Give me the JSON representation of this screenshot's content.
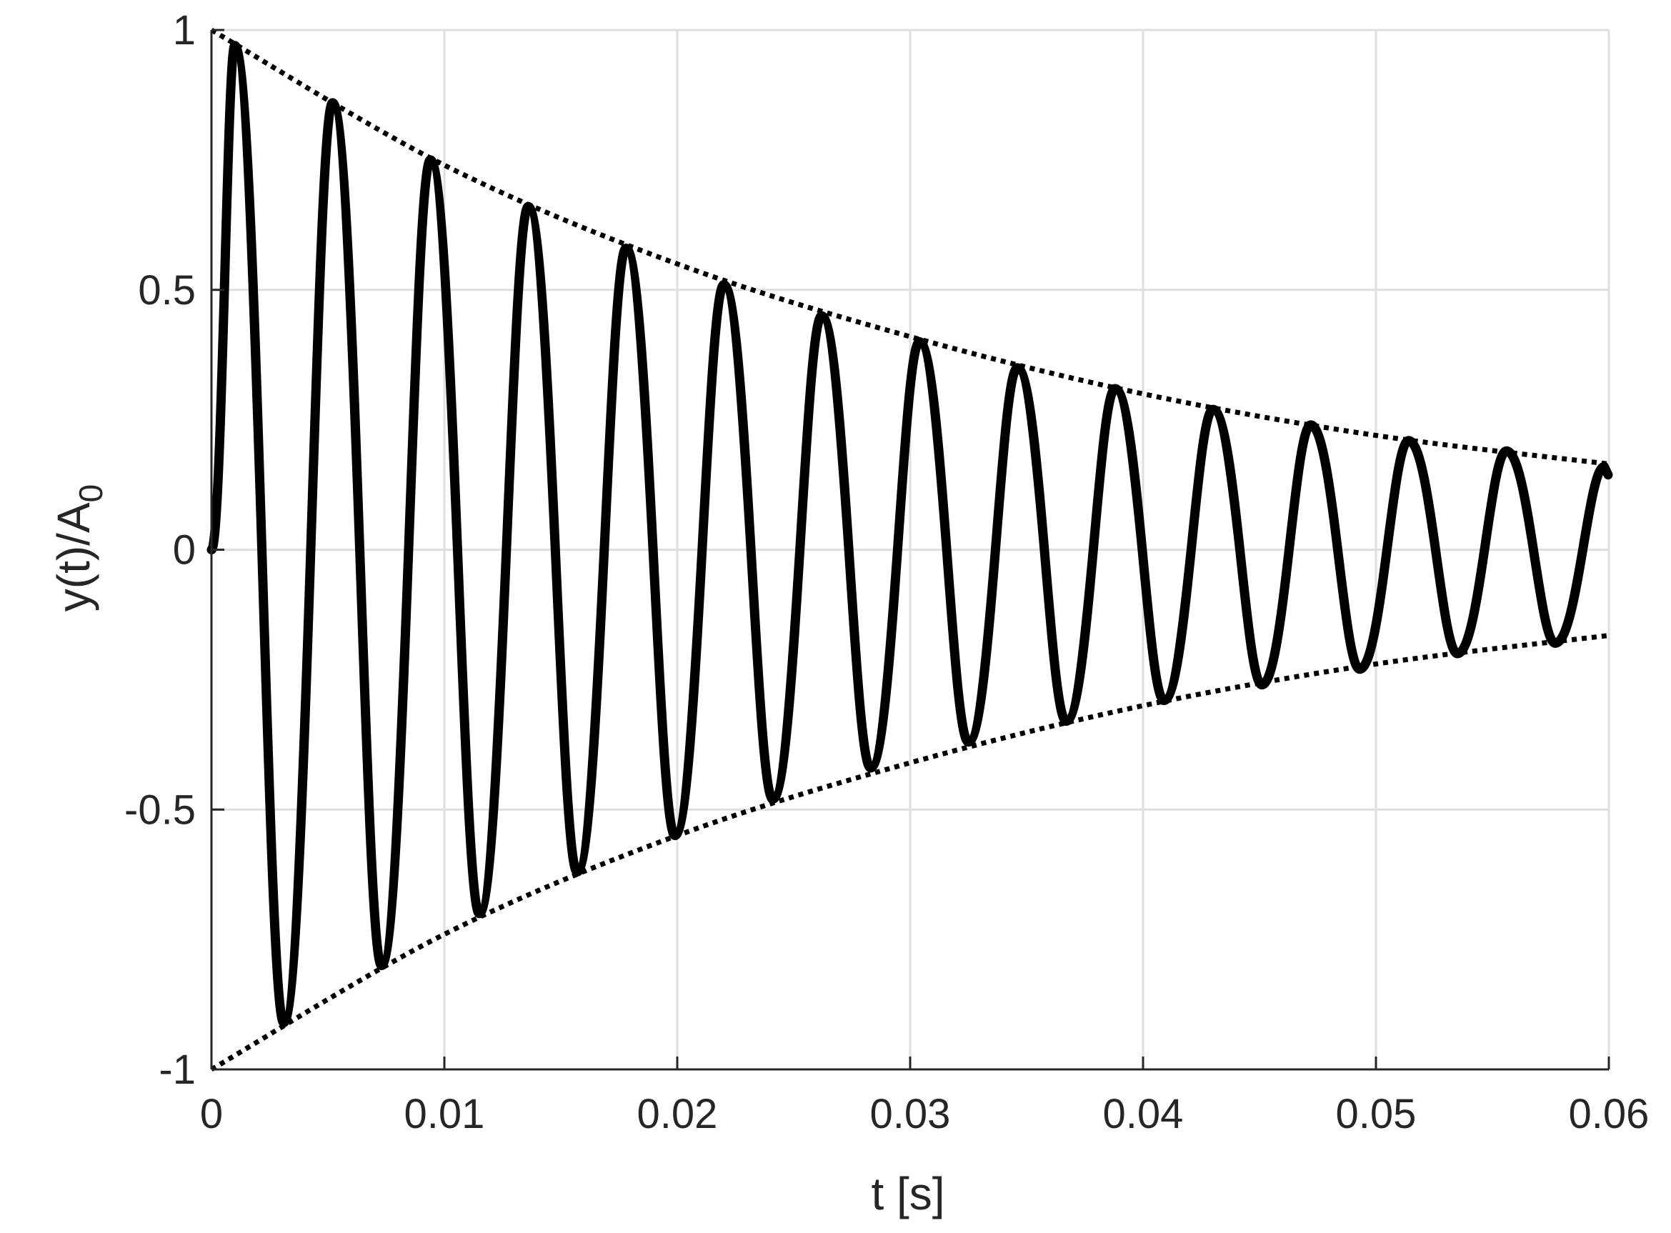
{
  "chart_data": {
    "type": "line",
    "title": "",
    "xlabel": "t [s]",
    "ylabel_main": "y(t)/A",
    "ylabel_sub": "0",
    "xlim": [
      0,
      0.06
    ],
    "ylim": [
      -1,
      1
    ],
    "x_ticks": [
      0,
      0.01,
      0.02,
      0.03,
      0.04,
      0.05,
      0.06
    ],
    "x_tick_labels": [
      "0",
      "0.01",
      "0.02",
      "0.03",
      "0.04",
      "0.05",
      "0.06"
    ],
    "y_ticks": [
      -1,
      -0.5,
      0,
      0.5,
      1
    ],
    "y_tick_labels": [
      "-1",
      "-0.5",
      "0",
      "0.5",
      "1"
    ],
    "grid": true,
    "series": [
      {
        "style": "solid",
        "color": "#000000",
        "x": [
          0.001,
          0.0031,
          0.0052,
          0.0073,
          0.0094,
          0.0115,
          0.0136,
          0.0157,
          0.0178,
          0.0199,
          0.022,
          0.0241,
          0.0262,
          0.0283,
          0.0304,
          0.0325,
          0.0346,
          0.0367,
          0.0388,
          0.0409,
          0.043,
          0.0451,
          0.0472,
          0.0493,
          0.0514,
          0.0535,
          0.0556,
          0.0577,
          0.0598
        ],
        "y": [
          0.97,
          -0.91,
          0.86,
          -0.8,
          0.75,
          -0.7,
          0.66,
          -0.62,
          0.58,
          -0.55,
          0.51,
          -0.48,
          0.45,
          -0.42,
          0.4,
          -0.37,
          0.35,
          -0.33,
          0.31,
          -0.29,
          0.27,
          -0.26,
          0.24,
          -0.23,
          0.21,
          -0.2,
          0.19,
          -0.18,
          0.16
        ]
      },
      {
        "style": "dotted",
        "color": "#000000",
        "x": [
          0,
          0.01,
          0.02,
          0.03,
          0.04,
          0.05,
          0.06
        ],
        "y": [
          1,
          0.74,
          0.55,
          0.41,
          0.3,
          0.22,
          0.165
        ]
      },
      {
        "style": "dotted",
        "color": "#000000",
        "x": [
          0,
          0.01,
          0.02,
          0.03,
          0.04,
          0.05,
          0.06
        ],
        "y": [
          -1,
          -0.74,
          -0.55,
          -0.41,
          -0.3,
          -0.22,
          -0.165
        ]
      }
    ]
  }
}
